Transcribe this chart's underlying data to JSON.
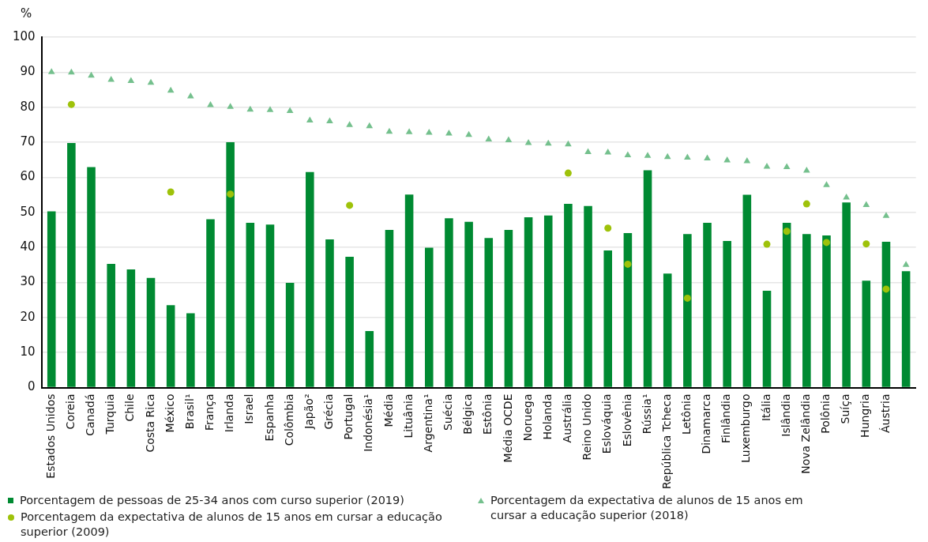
{
  "chart_data": {
    "type": "bar",
    "ylabel": "%",
    "ylim": [
      0,
      100
    ],
    "yticks": [
      0,
      10,
      20,
      30,
      40,
      50,
      60,
      70,
      80,
      90,
      100
    ],
    "grid": "y",
    "legend": "bottom",
    "categories": [
      "Estados Unidos",
      "Coreia",
      "Canadá",
      "Turquia",
      "Chile",
      "Costa Rica",
      "México",
      "Brasil¹",
      "França",
      "Irlanda",
      "Israel",
      "Espanha",
      "Colômbia",
      "Japão²",
      "Grécia",
      "Portugal",
      "Indonésia¹",
      "Média",
      "Lituânia",
      "Argentina¹",
      "Suécia",
      "Bélgica",
      "Estônia",
      "Média OCDE",
      "Noruega",
      "Holanda",
      "Austrália",
      "Reino Unido",
      "Eslováquia",
      "Eslovênia",
      "Rússia¹",
      "República Tcheca",
      "Letônia",
      "Dinamarca",
      "Finlândia",
      "Luxemburgo",
      "Itália",
      "Islândia",
      "Nova Zelândia",
      "Polônia",
      "Suíça",
      "Hungria",
      "Áustria",
      null
    ],
    "series": [
      {
        "name": "Porcentagem de pessoas de 25-34 anos com curso superior (2019)",
        "color": "#008a32",
        "values": [
          50.3,
          69.8,
          62.9,
          35.3,
          33.7,
          31.3,
          23.5,
          21.2,
          48,
          70,
          47,
          46.5,
          29.9,
          61.5,
          42.3,
          37.3,
          16.1,
          45,
          55.1,
          39.9,
          48.3,
          47.3,
          42.7,
          45,
          48.6,
          49.1,
          52.4,
          51.8,
          39.1,
          44.1,
          62,
          32.5,
          43.8,
          47,
          41.8,
          55,
          27.6,
          47,
          43.8,
          43.4,
          52.8,
          30.5,
          41.6,
          33.2
        ]
      },
      {
        "name": "Porcentagem da expectativa de alunos de 15 anos em cursar a educação superior (2018)",
        "type": "scatter",
        "marker": "triangle",
        "color": "#74c08d",
        "values": [
          90,
          89.9,
          89,
          87.8,
          87.5,
          87,
          84.7,
          83.1,
          80.6,
          80.1,
          79.3,
          79.2,
          78.9,
          76.2,
          76,
          74.9,
          74.6,
          73,
          72.9,
          72.7,
          72.5,
          72.1,
          70.8,
          70.6,
          69.8,
          69.6,
          69.4,
          67.2,
          67.1,
          66.3,
          66.1,
          65.8,
          65.6,
          65.4,
          64.8,
          64.6,
          63,
          62.9,
          61.9,
          57.8,
          54.2,
          52.1,
          49,
          35
        ]
      },
      {
        "name": "Porcentagem da expectativa de alunos de 15 anos em cursar a educação superior (2009)",
        "type": "scatter",
        "marker": "circle",
        "color": "#9ec20a",
        "values": [
          null,
          80.8,
          null,
          null,
          null,
          null,
          55.8,
          null,
          null,
          55.2,
          null,
          null,
          null,
          null,
          null,
          52,
          null,
          null,
          null,
          null,
          null,
          null,
          null,
          null,
          null,
          null,
          61.2,
          null,
          45.5,
          35.2,
          null,
          null,
          25.5,
          null,
          null,
          null,
          40.9,
          44.6,
          52.4,
          41.4,
          null,
          41,
          28.1,
          null
        ]
      }
    ]
  }
}
